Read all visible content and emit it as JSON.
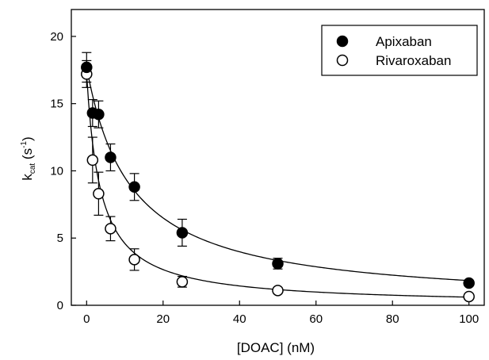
{
  "chart_data": {
    "type": "scatter",
    "xlabel": "[DOAC] (nM)",
    "ylabel": {
      "main": "k",
      "sub": "cat",
      "unit_open": " (s",
      "sup": "-1",
      "unit_close": ")"
    },
    "xlim": [
      -4,
      104
    ],
    "ylim": [
      0,
      22
    ],
    "xticks": [
      0,
      20,
      40,
      60,
      80,
      100
    ],
    "yticks": [
      0,
      5,
      10,
      15,
      20
    ],
    "grid": false,
    "legend_position": "top-right",
    "series": [
      {
        "name": "Apixaban",
        "marker": "filled-circle",
        "color": "#000000",
        "x": [
          0,
          1.56,
          3.13,
          6.25,
          12.5,
          25,
          50,
          100
        ],
        "y": [
          17.7,
          14.3,
          14.2,
          11.0,
          8.8,
          5.4,
          3.1,
          1.65
        ],
        "err": [
          1.1,
          1.0,
          1.0,
          1.0,
          1.0,
          1.0,
          0.4,
          0.2
        ],
        "fit": {
          "y0": 17.7,
          "ic50": 11.6
        }
      },
      {
        "name": "Rivaroxaban",
        "marker": "open-circle",
        "color": "#000000",
        "x": [
          0,
          1.56,
          3.13,
          6.25,
          12.5,
          25,
          50,
          100
        ],
        "y": [
          17.2,
          10.8,
          8.3,
          5.7,
          3.4,
          1.75,
          1.1,
          0.65
        ],
        "err": [
          1.0,
          1.7,
          1.6,
          0.9,
          0.8,
          0.4,
          0.2,
          0.15
        ],
        "fit": {
          "y0": 17.2,
          "ic50": 3.65
        }
      }
    ]
  }
}
